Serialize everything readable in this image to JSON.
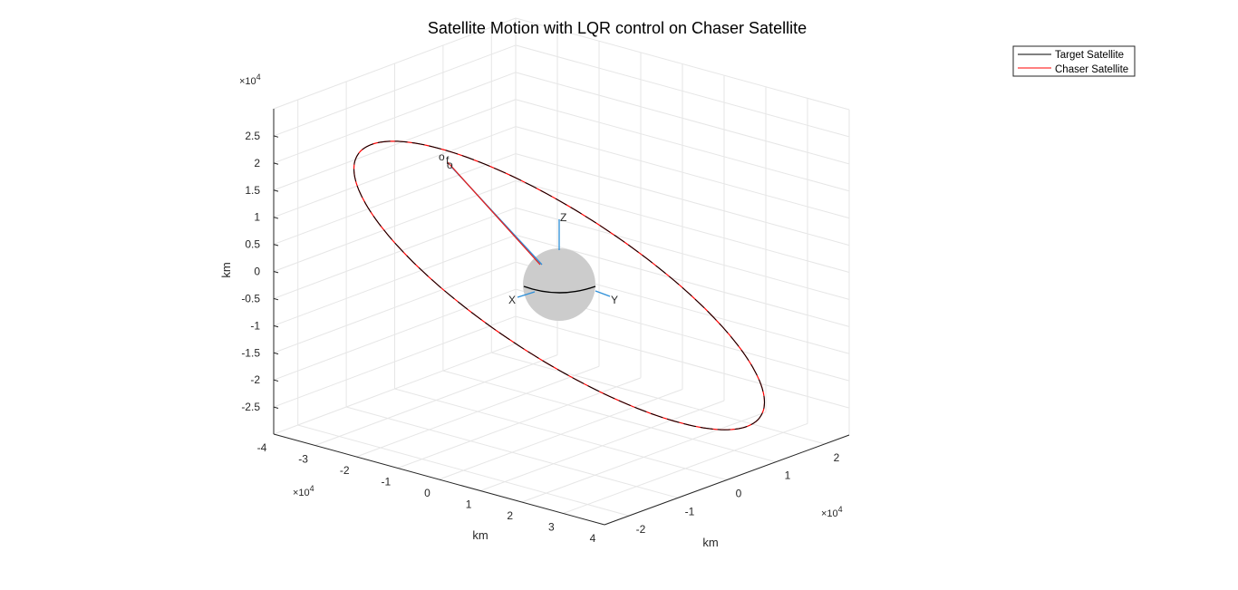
{
  "chart_data": {
    "type": "line",
    "title": "Satellite Motion with LQR control on Chaser Satellite",
    "xlabel": "km",
    "ylabel": "km",
    "zlabel": "km",
    "x_exponent": "×10",
    "x_exponent_power": "4",
    "y_exponent": "×10",
    "y_exponent_power": "4",
    "z_exponent": "×10",
    "z_exponent_power": "4",
    "x_ticks": [
      "-4",
      "-3",
      "-2",
      "-1",
      "0",
      "1",
      "2",
      "3",
      "4"
    ],
    "y_ticks": [
      "-2",
      "-1",
      "0",
      "1",
      "2"
    ],
    "z_ticks": [
      "2.5",
      "2",
      "1.5",
      "1",
      "0.5",
      "0",
      "-0.5",
      "-1",
      "-1.5",
      "-2",
      "-2.5"
    ],
    "grid": true,
    "legend_position": "top-right",
    "series": [
      {
        "name": "Target Satellite",
        "color": "#000000"
      },
      {
        "name": "Chaser Satellite",
        "color": "#ff0000"
      }
    ],
    "earth_axes": [
      "X",
      "Y",
      "Z"
    ],
    "markers": [
      "o",
      "f",
      "o"
    ]
  }
}
